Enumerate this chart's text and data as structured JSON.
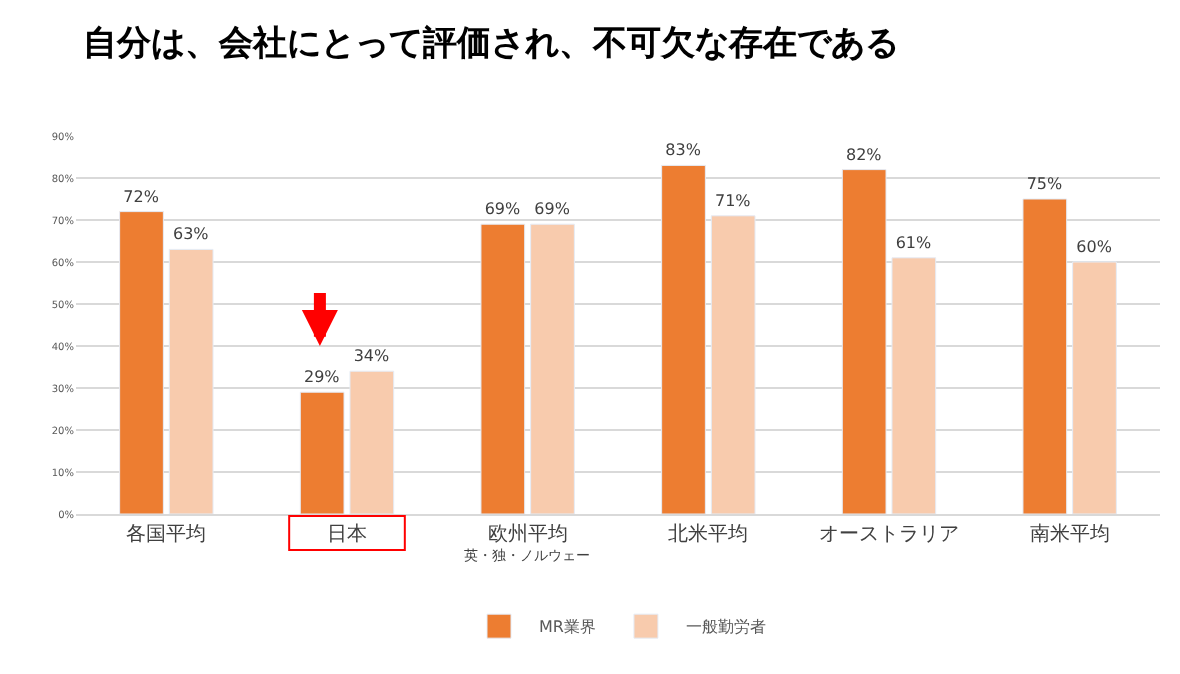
{
  "chart_data": {
    "type": "bar",
    "title": "自分は、会社にとって評価され、不可欠な存在である",
    "categories": [
      "各国平均",
      "日本",
      "欧州平均",
      "北米平均",
      "オーストラリア",
      "南米平均"
    ],
    "series": [
      {
        "name": "MR業界",
        "color": "#ed7d31",
        "values": [
          72,
          29,
          69,
          83,
          82,
          75
        ],
        "value_labels": [
          "72%",
          "29%",
          "69%",
          "83%",
          "82%",
          "75%"
        ]
      },
      {
        "name": "一般勤労者",
        "color": "#f8cbad",
        "values": [
          63,
          34,
          69,
          71,
          61,
          60
        ],
        "value_labels": [
          "63%",
          "34%",
          "69%",
          "71%",
          "61%",
          "60%"
        ]
      }
    ],
    "ylim": [
      0,
      90
    ],
    "yticks": [
      {
        "value": 0,
        "label": "0%"
      },
      {
        "value": 10,
        "label": "10%"
      },
      {
        "value": 20,
        "label": "20%"
      },
      {
        "value": 30,
        "label": "30%"
      },
      {
        "value": 40,
        "label": "40%"
      },
      {
        "value": 50,
        "label": "50%"
      },
      {
        "value": 60,
        "label": "60%"
      },
      {
        "value": 70,
        "label": "70%"
      },
      {
        "value": 80,
        "label": "80%"
      },
      {
        "value": 90,
        "label": "90%"
      }
    ],
    "annotations": [
      "英・独・ノルウェー"
    ],
    "grid": "y",
    "legend": "bottom"
  }
}
